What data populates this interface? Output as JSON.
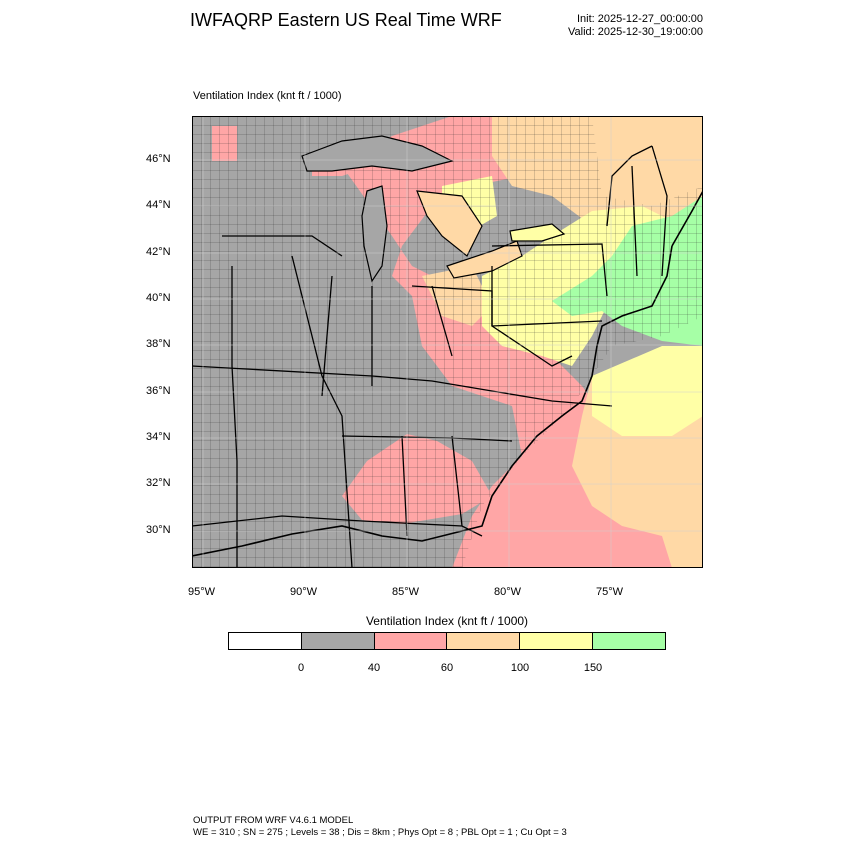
{
  "header": {
    "title": "IWFAQRP Eastern US Real Time WRF",
    "init": "Init: 2025-12-27_00:00:00",
    "valid": "Valid: 2025-12-30_19:00:00"
  },
  "plot": {
    "title": "Ventilation Index   (knt ft / 1000)",
    "lat_labels": [
      "46°N",
      "44°N",
      "42°N",
      "40°N",
      "38°N",
      "36°N",
      "34°N",
      "32°N",
      "30°N"
    ],
    "lon_labels": [
      "95°W",
      "90°W",
      "85°W",
      "80°W",
      "75°W"
    ]
  },
  "colorbar": {
    "title": "Ventilation Index  (knt ft / 1000)",
    "colors": [
      "#ffffff",
      "#a6a6a6",
      "#ffa6a6",
      "#ffd9a6",
      "#ffffa6",
      "#a6ffa6"
    ],
    "labels": [
      "0",
      "40",
      "60",
      "100",
      "150"
    ]
  },
  "footer": {
    "line1": "OUTPUT FROM WRF V4.6.1 MODEL",
    "line2": "WE = 310 ; SN = 275 ; Levels = 38 ; Dis = 8km ; Phys Opt = 8 ; PBL Opt = 1 ; Cu Opt = 3"
  }
}
